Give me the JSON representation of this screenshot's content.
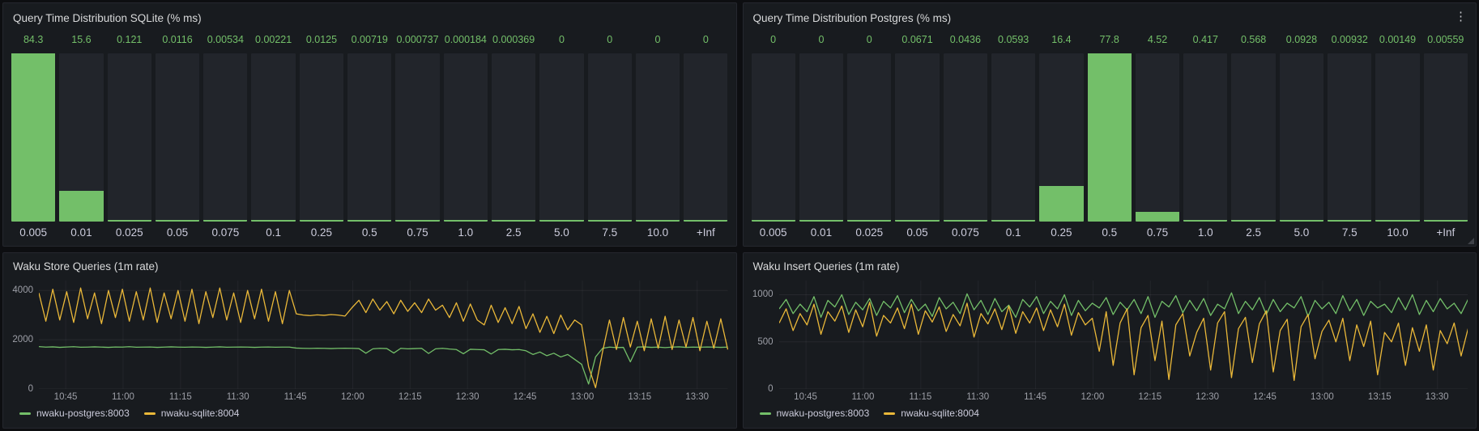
{
  "icons": {
    "panel_menu": "⋮"
  },
  "legend_labels": [
    "nwaku-postgres:8003",
    "nwaku-sqlite:8004"
  ],
  "colors": {
    "green": "#73bf69",
    "yellow": "#eab839",
    "bar_track": "#22252b",
    "panel_bg": "#181b1f",
    "value_text": "#73bf69"
  },
  "chart_data": [
    {
      "type": "bar",
      "title": "Query Time Distribution SQLite (% ms)",
      "categories": [
        "0.005",
        "0.01",
        "0.025",
        "0.05",
        "0.075",
        "0.1",
        "0.25",
        "0.5",
        "0.75",
        "1.0",
        "2.5",
        "5.0",
        "7.5",
        "10.0",
        "+Inf"
      ],
      "values": [
        84.3,
        15.6,
        0.121,
        0.0116,
        0.00534,
        0.00221,
        0.0125,
        0.00719,
        0.000737,
        0.000184,
        0.000369,
        0,
        0,
        0,
        0
      ],
      "value_labels": [
        "84.3",
        "15.6",
        "0.121",
        "0.0116",
        "0.00534",
        "0.00221",
        "0.0125",
        "0.00719",
        "0.000737",
        "0.000184",
        "0.000369",
        "0",
        "0",
        "0",
        "0"
      ],
      "bar_color": "#73bf69",
      "ylim": [
        0,
        100
      ]
    },
    {
      "type": "bar",
      "title": "Query Time Distribution Postgres (% ms)",
      "categories": [
        "0.005",
        "0.01",
        "0.025",
        "0.05",
        "0.075",
        "0.1",
        "0.25",
        "0.5",
        "0.75",
        "1.0",
        "2.5",
        "5.0",
        "7.5",
        "10.0",
        "+Inf"
      ],
      "values": [
        0,
        0,
        0,
        0.0671,
        0.0436,
        0.0593,
        16.4,
        77.8,
        4.52,
        0.417,
        0.568,
        0.0928,
        0.00932,
        0.00149,
        0.00559
      ],
      "value_labels": [
        "0",
        "0",
        "0",
        "0.0671",
        "0.0436",
        "0.0593",
        "16.4",
        "77.8",
        "4.52",
        "0.417",
        "0.568",
        "0.0928",
        "0.00932",
        "0.00149",
        "0.00559"
      ],
      "bar_color": "#73bf69",
      "ylim": [
        0,
        100
      ]
    },
    {
      "type": "line",
      "title": "Waku Store Queries (1m rate)",
      "x_ticks": [
        "10:45",
        "11:00",
        "11:15",
        "11:30",
        "11:45",
        "12:00",
        "12:15",
        "12:30",
        "12:45",
        "13:00",
        "13:15",
        "13:30"
      ],
      "y_ticks": [
        0,
        2000,
        4000
      ],
      "ylim": [
        0,
        4400
      ],
      "grid": true,
      "legend_position": "bottom",
      "series": [
        {
          "name": "nwaku-postgres:8003",
          "color": "#73bf69",
          "values": [
            1720,
            1700,
            1710,
            1690,
            1705,
            1715,
            1695,
            1700,
            1710,
            1700,
            1690,
            1705,
            1700,
            1715,
            1695,
            1700,
            1705,
            1690,
            1700,
            1710,
            1700,
            1695,
            1705,
            1700,
            1690,
            1700,
            1710,
            1695,
            1700,
            1705,
            1700,
            1690,
            1700,
            1705,
            1695,
            1700,
            1700,
            1660,
            1650,
            1645,
            1655,
            1650,
            1640,
            1650,
            1655,
            1650,
            1640,
            1450,
            1630,
            1650,
            1640,
            1460,
            1650,
            1630,
            1640,
            1650,
            1440,
            1630,
            1650,
            1620,
            1600,
            1430,
            1610,
            1600,
            1590,
            1420,
            1600,
            1610,
            1590,
            1600,
            1550,
            1400,
            1500,
            1350,
            1450,
            1300,
            1400,
            1200,
            1000,
            200,
            1300,
            1650,
            1700,
            1680,
            1690,
            1100,
            1700,
            1710,
            1690,
            1700,
            1680,
            1700,
            1710,
            1690,
            1700,
            1695,
            1705,
            1700,
            1690,
            1700
          ]
        },
        {
          "name": "nwaku-sqlite:8004",
          "color": "#eab839",
          "values": [
            3900,
            2750,
            4050,
            2800,
            3950,
            2700,
            4100,
            2850,
            3900,
            2650,
            4000,
            2900,
            4050,
            2750,
            3950,
            2800,
            4100,
            2700,
            3900,
            2850,
            4000,
            2750,
            4050,
            2650,
            3950,
            2900,
            4100,
            2800,
            3900,
            2700,
            4000,
            2850,
            4050,
            2750,
            3950,
            2650,
            4000,
            3050,
            3000,
            2980,
            3010,
            2990,
            3020,
            3000,
            2960,
            3300,
            3600,
            3100,
            3650,
            3200,
            3550,
            3050,
            3600,
            3150,
            3500,
            3100,
            3650,
            3200,
            3400,
            2900,
            3500,
            2750,
            3450,
            2800,
            2600,
            3400,
            2700,
            3300,
            2650,
            3350,
            2450,
            3050,
            2300,
            2950,
            2250,
            3000,
            2400,
            2800,
            2600,
            900,
            50,
            1500,
            2800,
            1600,
            2900,
            1700,
            2750,
            1550,
            2850,
            1650,
            2950,
            1600,
            2800,
            1700,
            2900,
            1550,
            2750,
            1650,
            2850,
            1600
          ]
        }
      ]
    },
    {
      "type": "line",
      "title": "Waku Insert Queries (1m rate)",
      "x_ticks": [
        "10:45",
        "11:00",
        "11:15",
        "11:30",
        "11:45",
        "12:00",
        "12:15",
        "12:30",
        "12:45",
        "13:00",
        "13:15",
        "13:30"
      ],
      "y_ticks": [
        0,
        500,
        1000
      ],
      "ylim": [
        0,
        1150
      ],
      "grid": true,
      "legend_position": "bottom",
      "series": [
        {
          "name": "nwaku-postgres:8003",
          "color": "#73bf69",
          "values": [
            850,
            950,
            800,
            900,
            820,
            980,
            760,
            940,
            870,
            1000,
            790,
            920,
            840,
            960,
            780,
            930,
            860,
            990,
            810,
            950,
            830,
            900,
            770,
            970,
            850,
            920,
            800,
            1010,
            840,
            940,
            790,
            960,
            820,
            890,
            760,
            950,
            870,
            980,
            800,
            930,
            850,
            1000,
            780,
            940,
            830,
            910,
            860,
            970,
            790,
            920,
            840,
            950,
            800,
            980,
            760,
            930,
            870,
            990,
            810,
            940,
            830,
            960,
            780,
            900,
            850,
            1020,
            800,
            930,
            840,
            970,
            790,
            950,
            820,
            910,
            860,
            980,
            770,
            940,
            850,
            920,
            800,
            990,
            830,
            950,
            780,
            930,
            860,
            900,
            810,
            970,
            840,
            1000,
            790,
            940,
            820,
            960,
            850,
            910,
            800,
            950
          ]
        },
        {
          "name": "nwaku-sqlite:8004",
          "color": "#eab839",
          "values": [
            700,
            850,
            620,
            800,
            680,
            900,
            580,
            820,
            720,
            880,
            600,
            840,
            660,
            920,
            560,
            780,
            700,
            860,
            640,
            900,
            580,
            830,
            710,
            870,
            610,
            790,
            670,
            910,
            550,
            800,
            690,
            850,
            630,
            880,
            590,
            820,
            700,
            860,
            620,
            840,
            660,
            900,
            570,
            810,
            680,
            750,
            400,
            820,
            250,
            700,
            850,
            150,
            650,
            780,
            300,
            720,
            100,
            680,
            800,
            350,
            600,
            750,
            200,
            700,
            820,
            120,
            640,
            760,
            280,
            690,
            830,
            180,
            620,
            740,
            90,
            660,
            790,
            320,
            610,
            730,
            500,
            750,
            300,
            680,
            450,
            720,
            150,
            600,
            500,
            700,
            250,
            650,
            400,
            680,
            200,
            620,
            480,
            700,
            350,
            640
          ]
        }
      ]
    }
  ]
}
